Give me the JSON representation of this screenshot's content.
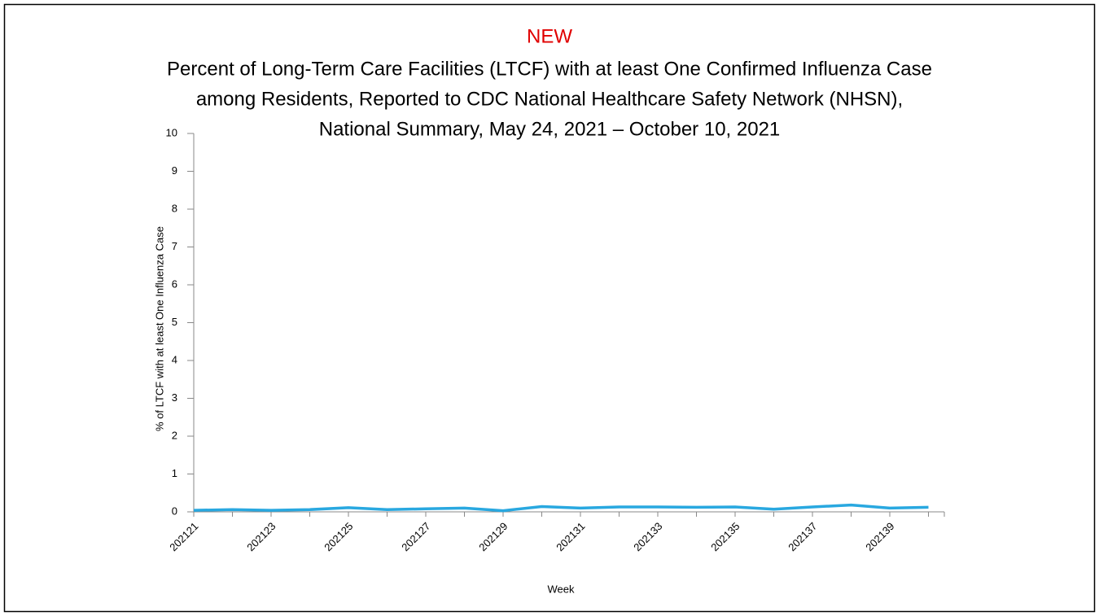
{
  "chart_data": {
    "type": "line",
    "annotations": [
      "NEW"
    ],
    "title": [
      "Percent of Long-Term Care Facilities (LTCF) with at least One Confirmed Influenza Case",
      "among Residents, Reported to CDC National Healthcare Safety Network (NHSN),",
      "National Summary, May 24, 2021 – October 10, 2021"
    ],
    "x_label": "Week",
    "y_label": "% of LTCF with at least One Influenza Case",
    "categories": [
      "202121",
      null,
      "202123",
      null,
      "202125",
      null,
      "202127",
      null,
      "202129",
      null,
      "202131",
      null,
      "202133",
      null,
      "202135",
      null,
      "202137",
      null,
      "202139",
      null
    ],
    "series": [
      {
        "name": null,
        "color": "#29a8e0",
        "values": [
          0.04,
          0.06,
          0.04,
          0.06,
          0.11,
          0.06,
          0.08,
          0.1,
          0.03,
          0.14,
          0.1,
          0.13,
          0.13,
          0.12,
          0.13,
          0.07,
          0.13,
          0.18,
          0.1,
          0.12
        ]
      }
    ],
    "ylim": [
      0,
      10
    ],
    "yticks": [
      0,
      1,
      2,
      3,
      4,
      5,
      6,
      7,
      8,
      9,
      10
    ],
    "grid": false
  }
}
